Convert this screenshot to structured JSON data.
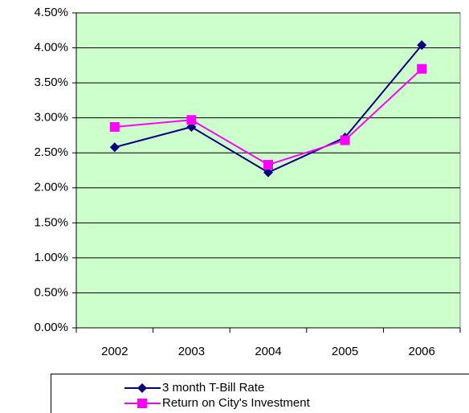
{
  "chart_data": {
    "type": "line",
    "categories": [
      "2002",
      "2003",
      "2004",
      "2005",
      "2006"
    ],
    "series": [
      {
        "name": "3 month T-Bill Rate",
        "color": "#000080",
        "marker": "diamond",
        "values": [
          2.58,
          2.87,
          2.22,
          2.72,
          4.04
        ]
      },
      {
        "name": "Return on City's Investment",
        "color": "#ff00ff",
        "marker": "square",
        "values": [
          2.87,
          2.97,
          2.33,
          2.68,
          3.7
        ]
      }
    ],
    "ylim": [
      0,
      4.5
    ],
    "yticks": [
      {
        "value": 0,
        "label": "0.00%"
      },
      {
        "value": 0.5,
        "label": "0.50%"
      },
      {
        "value": 1,
        "label": "1.00%"
      },
      {
        "value": 1.5,
        "label": "1.50%"
      },
      {
        "value": 2,
        "label": "2.00%"
      },
      {
        "value": 2.5,
        "label": "2.50%"
      },
      {
        "value": 3,
        "label": "3.00%"
      },
      {
        "value": 3.5,
        "label": "3.50%"
      },
      {
        "value": 4,
        "label": "4.00%"
      },
      {
        "value": 4.5,
        "label": "4.50%"
      }
    ],
    "grid": true,
    "plot_background": "#ccffcc",
    "legend": "bottom"
  }
}
